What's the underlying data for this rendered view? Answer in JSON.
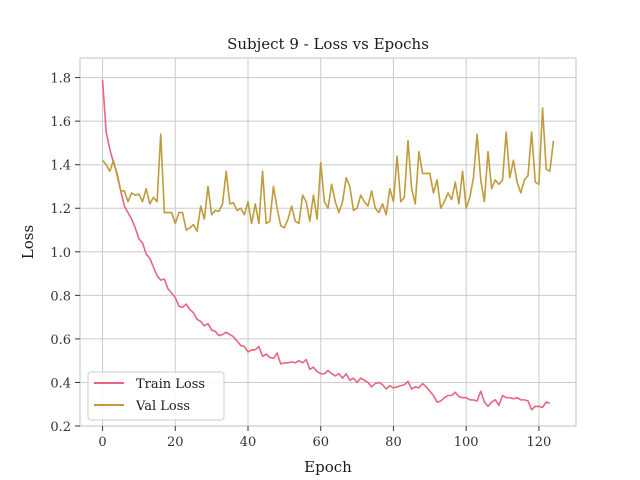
{
  "chart_data": {
    "type": "line",
    "title": "Subject 9 - Loss vs Epochs",
    "xlabel": "Epoch",
    "ylabel": "Loss",
    "xlim": [
      -6.2,
      130.2
    ],
    "ylim": [
      0.2,
      1.89
    ],
    "xticks": [
      0,
      20,
      40,
      60,
      80,
      100,
      120
    ],
    "yticks": [
      0.2,
      0.4,
      0.6,
      0.8,
      1.0,
      1.2,
      1.4,
      1.6,
      1.8
    ],
    "ytick_labels": [
      "0.2",
      "0.4",
      "0.6",
      "0.8",
      "1.0",
      "1.2",
      "1.4",
      "1.6",
      "1.8"
    ],
    "grid": true,
    "legend": "bottom-left",
    "series": [
      {
        "name": "Train Loss",
        "color": "#e8667e",
        "values": [
          1.79,
          1.55,
          1.47,
          1.41,
          1.36,
          1.28,
          1.21,
          1.18,
          1.15,
          1.11,
          1.06,
          1.04,
          0.99,
          0.97,
          0.93,
          0.89,
          0.87,
          0.875,
          0.83,
          0.81,
          0.79,
          0.75,
          0.745,
          0.76,
          0.735,
          0.72,
          0.69,
          0.68,
          0.66,
          0.67,
          0.64,
          0.635,
          0.615,
          0.62,
          0.63,
          0.62,
          0.61,
          0.59,
          0.57,
          0.565,
          0.54,
          0.55,
          0.55,
          0.565,
          0.52,
          0.53,
          0.515,
          0.51,
          0.535,
          0.485,
          0.49,
          0.49,
          0.495,
          0.49,
          0.5,
          0.49,
          0.505,
          0.46,
          0.47,
          0.45,
          0.44,
          0.44,
          0.455,
          0.44,
          0.43,
          0.44,
          0.42,
          0.44,
          0.41,
          0.42,
          0.4,
          0.42,
          0.41,
          0.4,
          0.38,
          0.395,
          0.4,
          0.39,
          0.37,
          0.385,
          0.375,
          0.38,
          0.385,
          0.39,
          0.405,
          0.37,
          0.38,
          0.375,
          0.395,
          0.38,
          0.36,
          0.34,
          0.31,
          0.315,
          0.33,
          0.34,
          0.34,
          0.355,
          0.335,
          0.33,
          0.33,
          0.32,
          0.32,
          0.315,
          0.36,
          0.31,
          0.29,
          0.31,
          0.32,
          0.295,
          0.34,
          0.33,
          0.33,
          0.325,
          0.33,
          0.32,
          0.32,
          0.315,
          0.275,
          0.29,
          0.29,
          0.285,
          0.31,
          0.305
        ]
      },
      {
        "name": "Val Loss",
        "color": "#bf9b3a",
        "values": [
          1.42,
          1.4,
          1.37,
          1.42,
          1.35,
          1.28,
          1.28,
          1.23,
          1.27,
          1.26,
          1.265,
          1.23,
          1.29,
          1.22,
          1.25,
          1.23,
          1.54,
          1.18,
          1.18,
          1.18,
          1.13,
          1.18,
          1.18,
          1.1,
          1.11,
          1.125,
          1.095,
          1.21,
          1.15,
          1.3,
          1.17,
          1.19,
          1.185,
          1.22,
          1.37,
          1.22,
          1.225,
          1.19,
          1.2,
          1.17,
          1.23,
          1.13,
          1.22,
          1.13,
          1.37,
          1.13,
          1.14,
          1.3,
          1.2,
          1.12,
          1.11,
          1.15,
          1.21,
          1.14,
          1.13,
          1.26,
          1.23,
          1.14,
          1.26,
          1.15,
          1.41,
          1.23,
          1.2,
          1.31,
          1.23,
          1.18,
          1.23,
          1.34,
          1.3,
          1.19,
          1.2,
          1.26,
          1.23,
          1.21,
          1.28,
          1.2,
          1.18,
          1.22,
          1.17,
          1.29,
          1.23,
          1.44,
          1.23,
          1.25,
          1.51,
          1.29,
          1.22,
          1.46,
          1.36,
          1.36,
          1.36,
          1.27,
          1.33,
          1.2,
          1.23,
          1.27,
          1.24,
          1.32,
          1.22,
          1.37,
          1.2,
          1.25,
          1.34,
          1.54,
          1.33,
          1.23,
          1.46,
          1.29,
          1.33,
          1.31,
          1.33,
          1.55,
          1.34,
          1.42,
          1.32,
          1.27,
          1.33,
          1.35,
          1.55,
          1.32,
          1.31,
          1.66,
          1.38,
          1.37,
          1.51
        ]
      }
    ]
  }
}
